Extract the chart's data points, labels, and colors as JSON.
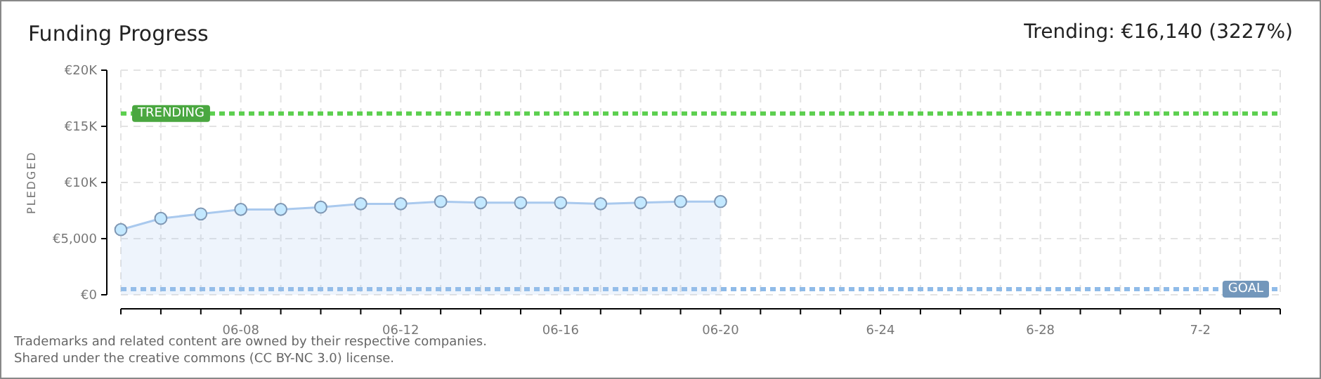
{
  "chart_data": {
    "type": "area",
    "title": "Funding Progress",
    "subtitle": "Trending: €16,140 (3227%)",
    "ylabel": "PLEDGED",
    "x": [
      "--06-05",
      "--06-06",
      "--06-07",
      "--06-08",
      "--06-09",
      "--06-10",
      "--06-11",
      "--06-12",
      "--06-13",
      "--06-14",
      "--06-15",
      "--06-16",
      "--06-17",
      "--06-18",
      "--06-19",
      "--06-20"
    ],
    "series": [
      {
        "color": "#a9c9ee",
        "values": [
          5800,
          6800,
          7200,
          7600,
          7600,
          7800,
          8100,
          8100,
          8300,
          8200,
          8200,
          8200,
          8100,
          8200,
          8300,
          8300
        ]
      }
    ],
    "xlim": [
      "--06-05",
      "--07-04"
    ],
    "xticks": [
      {
        "value": "--06-05",
        "label": null
      },
      {
        "value": "--06-06",
        "label": null
      },
      {
        "value": "--06-07",
        "label": null
      },
      {
        "value": "--06-08",
        "label": "06-08"
      },
      {
        "value": "--06-09",
        "label": null
      },
      {
        "value": "--06-10",
        "label": null
      },
      {
        "value": "--06-11",
        "label": null
      },
      {
        "value": "--06-12",
        "label": "06-12"
      },
      {
        "value": "--06-13",
        "label": null
      },
      {
        "value": "--06-14",
        "label": null
      },
      {
        "value": "--06-15",
        "label": null
      },
      {
        "value": "--06-16",
        "label": "06-16"
      },
      {
        "value": "--06-17",
        "label": null
      },
      {
        "value": "--06-18",
        "label": null
      },
      {
        "value": "--06-19",
        "label": null
      },
      {
        "value": "--06-20",
        "label": "06-20"
      },
      {
        "value": "--06-21",
        "label": null
      },
      {
        "value": "--06-22",
        "label": null
      },
      {
        "value": "--06-23",
        "label": null
      },
      {
        "value": "--06-24",
        "label": "6-24"
      },
      {
        "value": "--06-25",
        "label": null
      },
      {
        "value": "--06-26",
        "label": null
      },
      {
        "value": "--06-27",
        "label": null
      },
      {
        "value": "--06-28",
        "label": "6-28"
      },
      {
        "value": "--06-29",
        "label": null
      },
      {
        "value": "--06-30",
        "label": null
      },
      {
        "value": "--07-01",
        "label": null
      },
      {
        "value": "--07-02",
        "label": "7-2"
      },
      {
        "value": "--07-03",
        "label": null
      },
      {
        "value": "--07-04",
        "label": null
      }
    ],
    "ylim": [
      0,
      20000
    ],
    "yticks": [
      {
        "value": 0,
        "label": "€0"
      },
      {
        "value": 5000,
        "label": "€5,000"
      },
      {
        "value": 10000,
        "label": "€10K"
      },
      {
        "value": 15000,
        "label": "€15K"
      },
      {
        "value": 20000,
        "label": "€20K"
      }
    ],
    "grid": true,
    "marker": "circle",
    "ref_lines": [
      {
        "axis": "y",
        "value": 16140,
        "label": "TRENDING",
        "color": "#5ccf4f",
        "line_style": "dotted"
      },
      {
        "axis": "y",
        "value": 500,
        "label": "GOAL",
        "color": "#8fbbe8",
        "line_style": "dotted"
      }
    ],
    "annotations": [
      "Trademarks and related content are owned by their respective companies.",
      "Shared under the creative commons (CC BY-NC 3.0) license."
    ]
  }
}
